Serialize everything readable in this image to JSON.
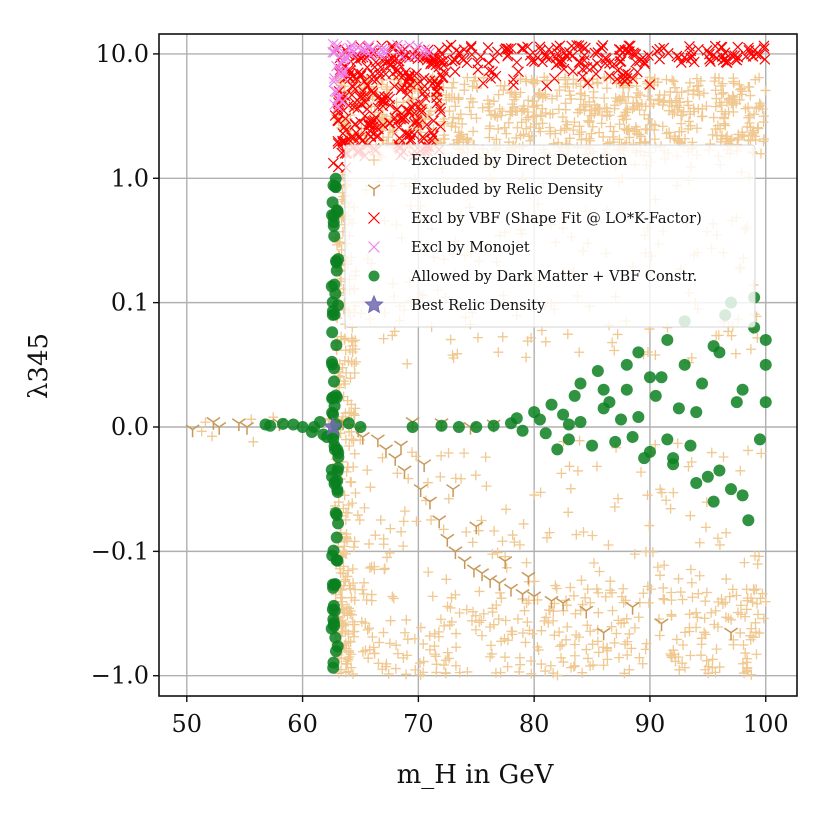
{
  "chart_data": {
    "type": "scatter",
    "title": "",
    "xlabel": "m_H in GeV",
    "ylabel": "λ345",
    "xlim": [
      47.6,
      102.7
    ],
    "x_ticks": [
      50,
      60,
      70,
      80,
      90,
      100
    ],
    "x_tick_labels": [
      "50",
      "60",
      "70",
      "80",
      "90",
      "100"
    ],
    "y_scale": "symlog",
    "y_ticks": [
      -1.0,
      -0.1,
      0.0,
      0.1,
      1.0,
      10.0
    ],
    "y_tick_labels": [
      "−1.0",
      "−0.1",
      "0.0",
      "0.1",
      "1.0",
      "10.0"
    ],
    "grid": true,
    "legend_position": "upper-right inside plot",
    "series": [
      {
        "name": "Excluded by Direct Detection",
        "marker": "plus",
        "color": "#f0c890",
        "regions": [
          {
            "x": [
              62.8,
              100
            ],
            "y": [
              1.5,
              6.5
            ],
            "density": "dense"
          },
          {
            "x": [
              62.8,
              100
            ],
            "y": [
              0.05,
              1.5
            ],
            "density": "sparse"
          },
          {
            "x": [
              50.3,
              62.5
            ],
            "y": [
              -0.012,
              0.012
            ],
            "density": "sparse"
          },
          {
            "x": [
              62.8,
              100
            ],
            "y": [
              -0.2,
              -0.01
            ],
            "density": "sparse"
          },
          {
            "x": [
              62.8,
              100
            ],
            "y": [
              -1.0,
              -0.2
            ],
            "density": "medium"
          },
          {
            "x": [
              62.8,
              64.6
            ],
            "y": [
              -1.0,
              1.0
            ],
            "density": "dense"
          }
        ]
      },
      {
        "name": "Excluded by Relic Density",
        "marker": "tri_down",
        "color": "#c89858",
        "points": [
          [
            50.5,
            -0.002
          ],
          [
            52.3,
            0.004
          ],
          [
            52.8,
            0.0
          ],
          [
            54.5,
            0.003
          ],
          [
            55.2,
            0.0
          ],
          [
            58.0,
            0.003
          ],
          [
            63.5,
            0.004
          ],
          [
            64.8,
            -0.002
          ],
          [
            65.2,
            -0.008
          ],
          [
            66.5,
            -0.01
          ],
          [
            67.2,
            -0.018
          ],
          [
            68.0,
            -0.025
          ],
          [
            68.8,
            -0.035
          ],
          [
            69.5,
            0.004
          ],
          [
            70.2,
            -0.05
          ],
          [
            71.0,
            -0.06
          ],
          [
            71.8,
            -0.075
          ],
          [
            72.5,
            -0.09
          ],
          [
            73.2,
            -0.1
          ],
          [
            74.0,
            -0.12
          ],
          [
            74.8,
            -0.14
          ],
          [
            75.5,
            -0.15
          ],
          [
            76.2,
            -0.17
          ],
          [
            77.0,
            -0.18
          ],
          [
            78.0,
            -0.2
          ],
          [
            79.0,
            -0.22
          ],
          [
            80.0,
            -0.23
          ],
          [
            81.5,
            -0.25
          ],
          [
            82.5,
            -0.26
          ],
          [
            84.5,
            -0.3
          ],
          [
            72.0,
            0.003
          ],
          [
            74.5,
            0.0
          ],
          [
            76.5,
            0.002
          ],
          [
            68.5,
            -0.015
          ],
          [
            70.5,
            -0.03
          ],
          [
            73.0,
            -0.05
          ],
          [
            75.0,
            -0.08
          ],
          [
            77.5,
            -0.12
          ],
          [
            79.5,
            -0.16
          ],
          [
            86.0,
            -0.45
          ],
          [
            88.5,
            -0.28
          ],
          [
            91.0,
            -0.38
          ],
          [
            97.0,
            -0.45
          ]
        ]
      },
      {
        "name": "Excl by VBF (Shape Fit @ LO*K-Factor)",
        "marker": "x",
        "color": "#ff0000",
        "regions": [
          {
            "x": [
              62.8,
              100
            ],
            "y": [
              8.5,
              11.8
            ],
            "density": "dense"
          },
          {
            "x": [
              63.0,
              72.0
            ],
            "y": [
              1.5,
              10.0
            ],
            "density": "dense"
          },
          {
            "x": [
              72.0,
              90.0
            ],
            "y": [
              5.5,
              9.0
            ],
            "density": "medium"
          },
          {
            "x": [
              62.6,
              63.8
            ],
            "y": [
              1.2,
              3.5
            ],
            "density": "medium"
          }
        ]
      },
      {
        "name": "Excl by Monojet",
        "marker": "x",
        "color": "#ee82ee",
        "regions": [
          {
            "x": [
              62.6,
              71.0
            ],
            "y": [
              9.0,
              11.8
            ],
            "density": "dense"
          },
          {
            "x": [
              62.6,
              63.8
            ],
            "y": [
              3.5,
              12.0
            ],
            "density": "dense"
          }
        ]
      },
      {
        "name": "Allowed by Dark Matter + VBF Constr.",
        "marker": "circle",
        "color": "#0a8020",
        "points": [
          [
            56.8,
            0.002
          ],
          [
            57.2,
            0.001
          ],
          [
            58.3,
            0.0025
          ],
          [
            59.2,
            0.002
          ],
          [
            61.5,
            0.004
          ],
          [
            60.0,
            0.0
          ],
          [
            61.0,
            0.0
          ],
          [
            60.8,
            -0.004
          ],
          [
            61.8,
            -0.006
          ],
          [
            62.1,
            -0.008
          ],
          [
            64.0,
            0.003
          ],
          [
            65.0,
            0.0
          ],
          [
            69.5,
            0.0
          ],
          [
            72.0,
            0.001
          ],
          [
            73.5,
            0.0
          ],
          [
            75.0,
            0.0
          ],
          [
            76.5,
            0.001
          ],
          [
            78.0,
            0.003
          ],
          [
            79.0,
            -0.003
          ],
          [
            80.5,
            0.006
          ],
          [
            81.0,
            -0.005
          ],
          [
            82.5,
            0.01
          ],
          [
            83.0,
            -0.01
          ],
          [
            84.0,
            0.004
          ],
          [
            85.0,
            -0.015
          ],
          [
            86.5,
            0.02
          ],
          [
            87.0,
            -0.012
          ],
          [
            88.0,
            0.03
          ],
          [
            89.0,
            0.008
          ],
          [
            90.0,
            -0.02
          ],
          [
            91.0,
            0.04
          ],
          [
            92.0,
            -0.03
          ],
          [
            93.0,
            0.05
          ],
          [
            94.0,
            0.012
          ],
          [
            95.0,
            -0.04
          ],
          [
            96.0,
            0.06
          ],
          [
            97.0,
            -0.05
          ],
          [
            98.0,
            0.03
          ],
          [
            99.0,
            0.08
          ],
          [
            100.0,
            0.05
          ],
          [
            99.5,
            -0.01
          ],
          [
            96.5,
            0.09
          ],
          [
            95.5,
            -0.06
          ],
          [
            92.5,
            0.015
          ],
          [
            89.5,
            -0.025
          ],
          [
            87.5,
            0.006
          ],
          [
            85.5,
            0.045
          ],
          [
            83.5,
            0.025
          ],
          [
            81.5,
            0.018
          ],
          [
            80.0,
            0.012
          ],
          [
            78.5,
            0.007
          ],
          [
            94.5,
            0.035
          ],
          [
            97.5,
            0.02
          ],
          [
            98.5,
            -0.075
          ],
          [
            93.5,
            -0.015
          ],
          [
            91.5,
            0.07
          ],
          [
            90.5,
            0.025
          ],
          [
            88.5,
            -0.008
          ],
          [
            86.0,
            0.03
          ],
          [
            82.0,
            -0.018
          ],
          [
            97.0,
            0.1
          ],
          [
            99.0,
            0.11
          ],
          [
            100.0,
            0.07
          ],
          [
            98.0,
            -0.055
          ],
          [
            96.0,
            -0.035
          ],
          [
            94.0,
            -0.045
          ],
          [
            92.0,
            -0.025
          ],
          [
            90.0,
            0.04
          ],
          [
            88.0,
            0.05
          ],
          [
            86.0,
            0.015
          ],
          [
            84.0,
            0.035
          ],
          [
            83.0,
            0.002
          ],
          [
            100.0,
            0.02
          ],
          [
            95.5,
            0.065
          ],
          [
            93.0,
            0.085
          ],
          [
            91.5,
            -0.01
          ],
          [
            89.0,
            0.06
          ]
        ],
        "regions": [
          {
            "x": [
              62.5,
              63.1
            ],
            "y": [
              -1.0,
              1.2
            ],
            "density": "dense"
          }
        ]
      },
      {
        "name": "Best Relic Density",
        "marker": "star",
        "color": "#7068b0",
        "points": [
          [
            62.6,
            0.0
          ]
        ]
      }
    ]
  }
}
